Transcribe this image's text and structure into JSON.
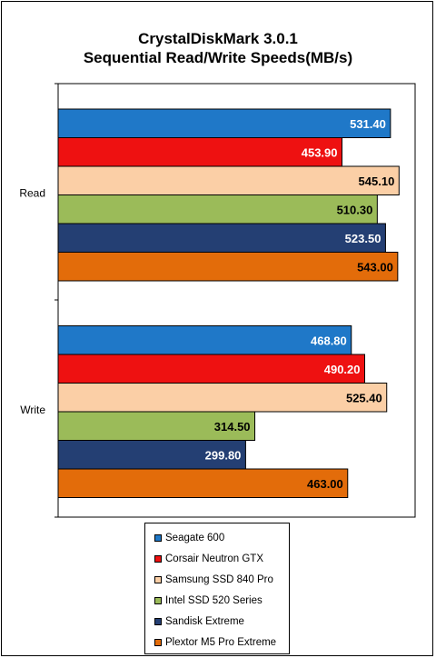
{
  "chart_data": {
    "type": "bar",
    "orientation": "horizontal",
    "title": [
      "CrystalDiskMark 3.0.1",
      "Sequential Read/Write Speeds(MB/s)"
    ],
    "categories": [
      "Read",
      "Write"
    ],
    "series": [
      {
        "name": "Seagate 600",
        "color": "#1f78c8",
        "values": [
          531.4,
          468.8
        ],
        "labels": [
          "531.40",
          "468.80"
        ],
        "label_color": "#ffffff"
      },
      {
        "name": "Corsair Neutron GTX",
        "color": "#ee1111",
        "values": [
          453.9,
          490.2
        ],
        "labels": [
          "453.90",
          "490.20"
        ],
        "label_color": "#ffffff"
      },
      {
        "name": "Samsung SSD 840 Pro",
        "color": "#fbcfa6",
        "values": [
          545.1,
          525.4
        ],
        "labels": [
          "545.10",
          "525.40"
        ],
        "label_color": "#000000"
      },
      {
        "name": "Intel SSD 520 Series",
        "color": "#9bbb59",
        "values": [
          510.3,
          314.5
        ],
        "labels": [
          "510.30",
          "314.50"
        ],
        "label_color": "#000000"
      },
      {
        "name": "Sandisk Extreme",
        "color": "#243f73",
        "values": [
          523.5,
          299.8
        ],
        "labels": [
          "523.50",
          "299.80"
        ],
        "label_color": "#ffffff"
      },
      {
        "name": "Plextor M5 Pro Extreme",
        "color": "#e36c0a",
        "values": [
          543.0,
          463.0
        ],
        "labels": [
          "543.00",
          "463.00"
        ],
        "label_color": "#000000"
      }
    ],
    "xlim": [
      0,
      600
    ],
    "grid": false,
    "legend_position": "bottom",
    "plot_background": "#ffffff"
  }
}
